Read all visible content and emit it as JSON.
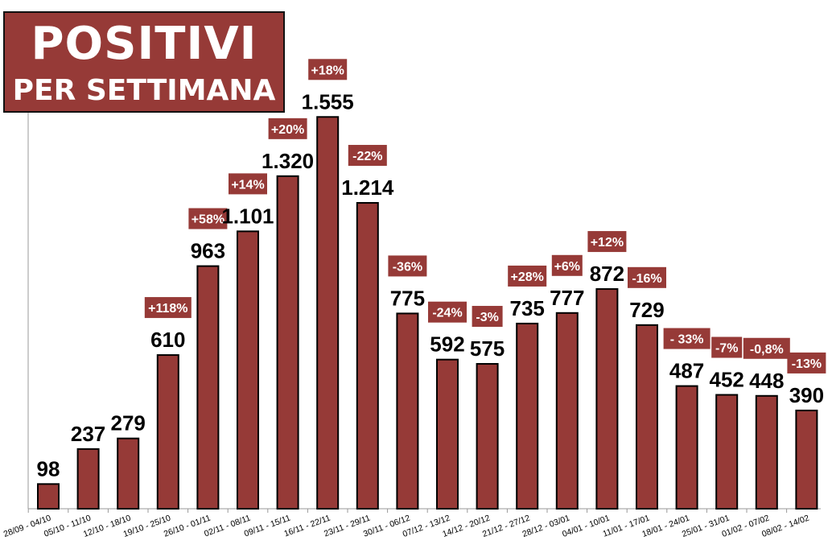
{
  "title": {
    "line1": "POSITIVI",
    "line2": "PER SETTIMANA"
  },
  "colors": {
    "bar": "#963a37",
    "bar_outline": "#000000",
    "badge": "#963a37",
    "badge_text": "#ffffff",
    "value_text": "#000000",
    "axis": "#999999"
  },
  "chart_data": {
    "type": "bar",
    "categories": [
      "28/09 - 04/10",
      "05/10 - 11/10",
      "12/10 - 18/10",
      "19/10 - 25/10",
      "26/10 - 01/11",
      "02/11 - 08/11",
      "09/11 - 15/11",
      "16/11 - 22/11",
      "23/11 - 29/11",
      "30/11 - 06/12",
      "07/12 - 13/12",
      "14/12 - 20/12",
      "21/12 - 27/12",
      "28/12 - 03/01",
      "04/01 - 10/01",
      "11/01 - 17/01",
      "18/01 - 24/01",
      "25/01 - 31/01",
      "01/02 - 07/02",
      "08/02 - 14/02"
    ],
    "values": [
      98,
      237,
      279,
      610,
      963,
      1101,
      1320,
      1555,
      1214,
      775,
      592,
      575,
      735,
      777,
      872,
      729,
      487,
      452,
      448,
      390
    ],
    "value_labels": [
      "98",
      "237",
      "279",
      "610",
      "963",
      "1.101",
      "1.320",
      "1.555",
      "1.214",
      "775",
      "592",
      "575",
      "735",
      "777",
      "872",
      "729",
      "487",
      "452",
      "448",
      "390"
    ],
    "change_labels": [
      "",
      "",
      "",
      "+118%",
      "+58%",
      "+14%",
      "+20%",
      "+18%",
      "-22%",
      "-36%",
      "-24%",
      "-3%",
      "+28%",
      "+6%",
      "+12%",
      "-16%",
      "- 33%",
      "-7%",
      "-0,8%",
      "-13%"
    ],
    "ylim": [
      0,
      1600
    ],
    "grid": false,
    "legend": "none"
  }
}
